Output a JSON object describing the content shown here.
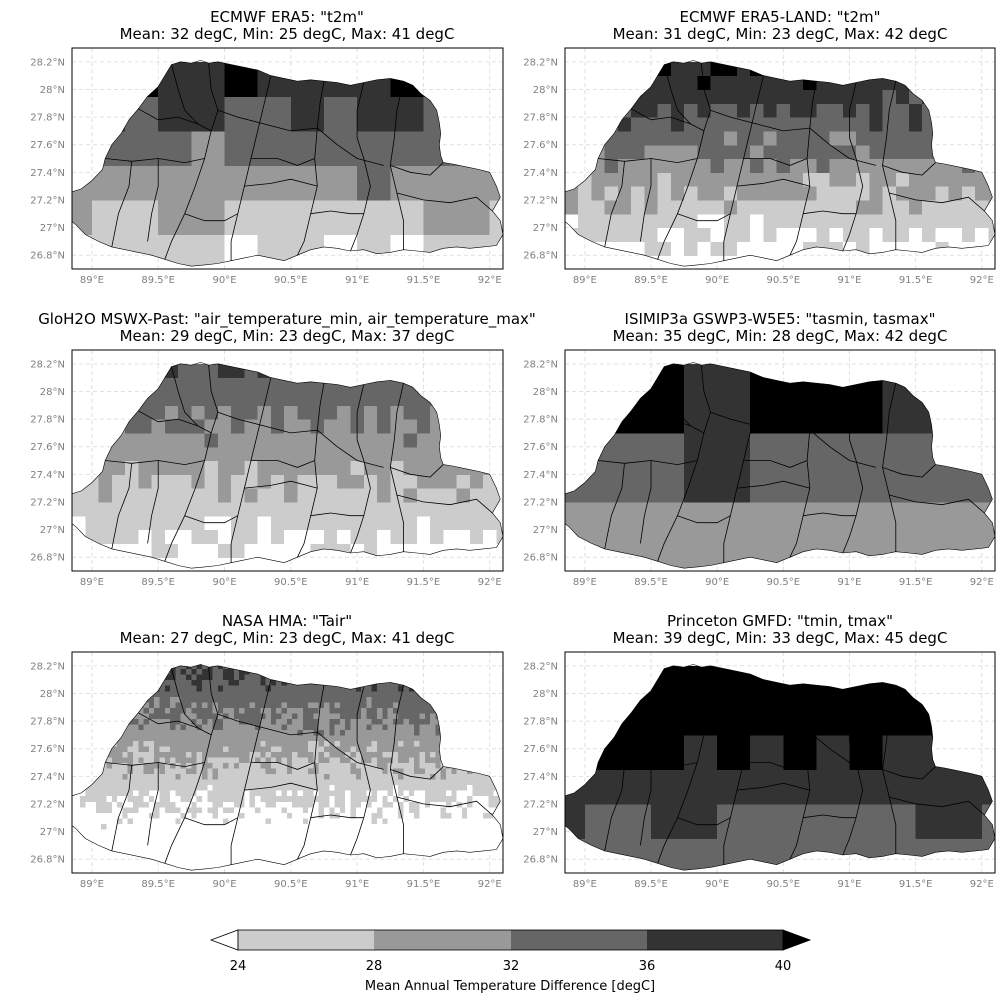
{
  "map_data": {
    "lon_ticks": [
      "89°E",
      "89.5°E",
      "90°E",
      "90.5°E",
      "91°E",
      "91.5°E",
      "92°E"
    ],
    "lat_ticks": [
      "28.2°N",
      "28°N",
      "27.8°N",
      "27.6°N",
      "27.4°N",
      "27.2°N",
      "27°N",
      "26.8°N"
    ],
    "lon_values": [
      89,
      89.5,
      90,
      90.5,
      91,
      91.5,
      92
    ],
    "lat_values": [
      28.2,
      28,
      27.8,
      27.6,
      27.4,
      27.2,
      27,
      26.8
    ],
    "lon_range": [
      88.85,
      92.1
    ],
    "lat_range": [
      26.7,
      28.3
    ],
    "panels": [
      {
        "title": "ECMWF ERA5: \"t2m\"",
        "stats": "Mean: 32 degC, Min: 25 degC, Max: 41 degC",
        "mean": 32,
        "min": 25,
        "max": 41,
        "res": 0.25
      },
      {
        "title": "ECMWF ERA5-LAND: \"t2m\"",
        "stats": "Mean: 31 degC, Min: 23 degC, Max: 42 degC",
        "mean": 31,
        "min": 23,
        "max": 42,
        "res": 0.1
      },
      {
        "title": "GloH2O MSWX-Past: \"air_temperature_min, air_temperature_max\"",
        "stats": "Mean: 29 degC, Min: 23 degC, Max: 37 degC",
        "mean": 29,
        "min": 23,
        "max": 37,
        "res": 0.1
      },
      {
        "title": "ISIMIP3a GSWP3-W5E5: \"tasmin, tasmax\"",
        "stats": "Mean: 35 degC, Min: 28 degC, Max: 42 degC",
        "mean": 35,
        "min": 28,
        "max": 42,
        "res": 0.5
      },
      {
        "title": "NASA HMA: \"Tair\"",
        "stats": "Mean: 27 degC, Min: 23 degC, Max: 41 degC",
        "mean": 27,
        "min": 23,
        "max": 41,
        "res": 0.04
      },
      {
        "title": "Princeton GMFD: \"tmin, tmax\"",
        "stats": "Mean: 39 degC, Min: 33 degC, Max: 45 degC",
        "mean": 39,
        "min": 33,
        "max": 45,
        "res": 0.25
      }
    ]
  },
  "colorbar": {
    "ticks": [
      "24",
      "28",
      "32",
      "36",
      "40"
    ],
    "bounds": [
      24,
      28,
      32,
      36,
      40
    ],
    "colors": [
      "#cccccc",
      "#999999",
      "#666666",
      "#333333"
    ],
    "under_color": "#ffffff",
    "over_color": "#000000",
    "label": "Mean Annual Temperature Difference [degC]"
  }
}
